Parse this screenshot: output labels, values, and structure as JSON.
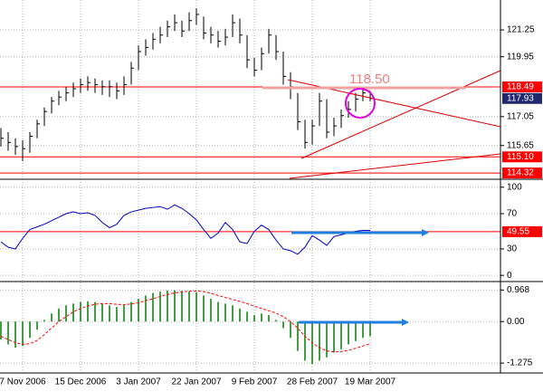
{
  "chart_data": [
    {
      "type": "hlc",
      "categories": [
        null,
        null,
        null,
        "7 Nov 2006",
        null,
        null,
        null,
        null,
        null,
        null,
        null,
        "15 Dec 2006",
        null,
        null,
        null,
        null,
        null,
        null,
        null,
        "3 Jan 2007",
        null,
        null,
        null,
        null,
        null,
        null,
        null,
        "22 Jan 2007",
        null,
        null,
        null,
        null,
        null,
        null,
        null,
        "9 Feb 2007",
        null,
        null,
        null,
        null,
        null,
        null,
        null,
        "28 Feb 2007",
        null,
        null,
        null,
        null,
        null,
        null,
        null,
        "19 Mar 2007"
      ],
      "high": [
        116.5,
        116.3,
        116.0,
        115.9,
        116.3,
        116.9,
        117.5,
        118.0,
        118.3,
        118.5,
        118.7,
        118.9,
        119.0,
        118.9,
        118.8,
        118.8,
        118.7,
        119.0,
        119.7,
        120.5,
        120.8,
        121.1,
        121.4,
        121.7,
        122.0,
        121.7,
        122.1,
        122.3,
        121.9,
        121.4,
        121.2,
        121.3,
        122.0,
        121.8,
        121.0,
        119.9,
        120.4,
        121.3,
        121.0,
        120.2,
        119.2,
        118.2,
        116.9,
        116.9,
        118.2,
        117.9,
        117.0,
        117.4,
        117.8,
        118.2,
        118.5,
        118.3
      ],
      "low": [
        115.6,
        115.4,
        115.2,
        114.9,
        115.3,
        116.0,
        116.6,
        117.2,
        117.6,
        117.8,
        118.0,
        118.2,
        118.3,
        118.2,
        118.1,
        118.0,
        117.9,
        118.1,
        118.6,
        119.3,
        120.0,
        120.3,
        120.6,
        120.9,
        121.2,
        120.9,
        121.2,
        121.5,
        120.8,
        120.6,
        120.4,
        120.5,
        120.9,
        120.6,
        119.4,
        119.0,
        119.3,
        120.1,
        119.8,
        118.6,
        117.9,
        116.4,
        115.5,
        115.7,
        116.6,
        116.0,
        116.1,
        116.5,
        117.0,
        117.3,
        117.8,
        117.8
      ],
      "close": [
        116.0,
        115.8,
        115.6,
        115.5,
        116.1,
        116.7,
        117.3,
        117.8,
        118.0,
        118.2,
        118.4,
        118.6,
        118.7,
        118.6,
        118.5,
        118.5,
        118.3,
        118.6,
        119.4,
        120.2,
        120.4,
        120.8,
        121.0,
        121.4,
        121.6,
        121.2,
        121.7,
        122.0,
        121.1,
        121.0,
        120.7,
        120.9,
        121.6,
        121.0,
        119.8,
        119.3,
        120.1,
        121.0,
        120.2,
        119.0,
        118.5,
        116.8,
        115.8,
        116.6,
        117.8,
        116.3,
        116.6,
        117.1,
        117.4,
        117.9,
        118.2,
        117.93
      ],
      "color": "#000000",
      "ylim": [
        114.06,
        122.7
      ],
      "yticks": [
        121.25,
        119.95,
        117.05,
        115.65
      ],
      "levels": [
        118.49,
        {
          "value": 115.1,
          "label": "115.10"
        },
        114.32
      ],
      "level_color": "#ff0000",
      "annotation": "118.50",
      "grid": true
    },
    {
      "type": "line",
      "values": [
        38,
        32,
        30,
        42,
        52,
        55,
        58,
        62,
        66,
        70,
        72,
        70,
        71,
        68,
        60,
        54,
        58,
        68,
        72,
        74,
        76,
        77,
        78,
        75,
        80,
        76,
        70,
        63,
        52,
        42,
        48,
        60,
        52,
        38,
        36,
        50,
        57,
        52,
        40,
        30,
        28,
        24,
        32,
        45,
        40,
        34,
        44,
        46,
        48,
        50,
        51,
        51
      ],
      "color": "#0000c8",
      "ylim": [
        -6,
        108
      ],
      "yticks": [
        100,
        70,
        30,
        0
      ],
      "levels": [
        49.55
      ],
      "level_color": "#ff0000",
      "grid": true
    },
    {
      "type": "macd",
      "histogram": [
        -0.55,
        -0.7,
        -0.8,
        -0.75,
        -0.5,
        -0.25,
        0.05,
        0.25,
        0.4,
        0.5,
        0.55,
        0.6,
        0.62,
        0.6,
        0.55,
        0.5,
        0.45,
        0.5,
        0.6,
        0.7,
        0.8,
        0.88,
        0.92,
        0.95,
        0.96,
        0.94,
        0.92,
        0.9,
        0.8,
        0.7,
        0.6,
        0.55,
        0.5,
        0.4,
        0.3,
        0.2,
        0.25,
        0.2,
        0.05,
        -0.2,
        -0.5,
        -0.9,
        -1.2,
        -1.3,
        -1.2,
        -1.1,
        -0.95,
        -0.85,
        -0.7,
        -0.6,
        -0.5,
        -0.45
      ],
      "signal": [
        -0.45,
        -0.55,
        -0.65,
        -0.7,
        -0.68,
        -0.58,
        -0.4,
        -0.2,
        0,
        0.15,
        0.3,
        0.4,
        0.48,
        0.53,
        0.55,
        0.55,
        0.53,
        0.52,
        0.54,
        0.58,
        0.64,
        0.7,
        0.77,
        0.83,
        0.88,
        0.91,
        0.93,
        0.94,
        0.92,
        0.87,
        0.8,
        0.74,
        0.68,
        0.62,
        0.55,
        0.47,
        0.4,
        0.33,
        0.26,
        0.15,
        0.0,
        -0.2,
        -0.45,
        -0.65,
        -0.8,
        -0.9,
        -0.93,
        -0.92,
        -0.88,
        -0.82,
        -0.75,
        -0.68
      ],
      "histogram_color": "#008000",
      "signal_color": "#ff0000",
      "ylim": [
        -1.55,
        1.2
      ],
      "yticks": [
        0.968,
        {
          "value": 0,
          "label": "0.00"
        },
        -1.275
      ],
      "grid": true
    }
  ]
}
